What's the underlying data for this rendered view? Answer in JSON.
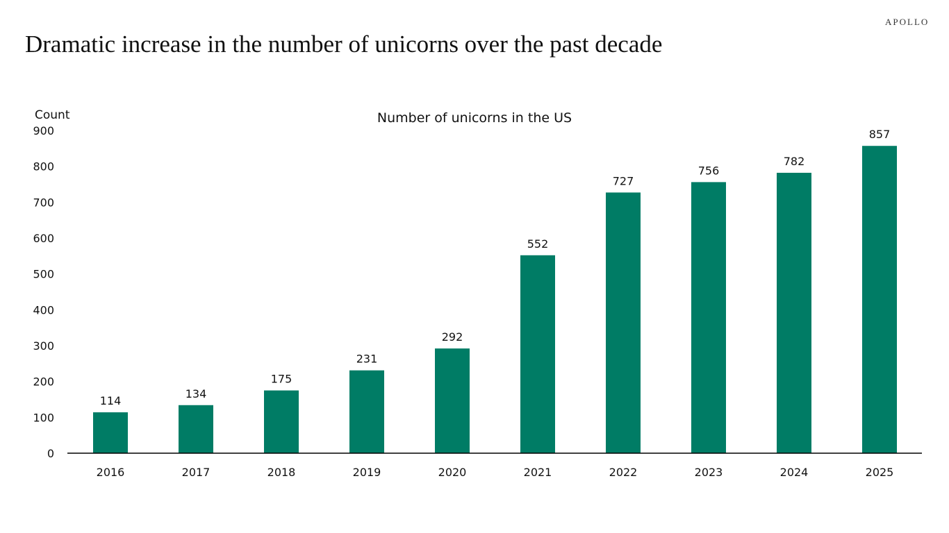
{
  "page": {
    "title": "Dramatic increase in the number of unicorns over the past decade",
    "logo": "APOLLO"
  },
  "chart_data": {
    "type": "bar",
    "title": "Number of unicorns in the US",
    "ylabel": "Count",
    "xlabel": "",
    "categories": [
      "2016",
      "2017",
      "2018",
      "2019",
      "2020",
      "2021",
      "2022",
      "2023",
      "2024",
      "2025"
    ],
    "values": [
      114,
      134,
      175,
      231,
      292,
      552,
      727,
      756,
      782,
      857
    ],
    "ylim": [
      0,
      900
    ],
    "yticks": [
      0,
      100,
      200,
      300,
      400,
      500,
      600,
      700,
      800,
      900
    ],
    "grid": false,
    "data_labels": true,
    "bar_color": "#007c65"
  }
}
